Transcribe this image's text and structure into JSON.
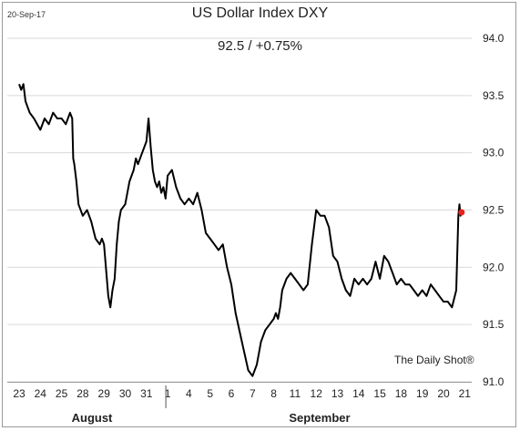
{
  "date_stamp": "20-Sep-17",
  "chart_data": {
    "type": "line",
    "title": "US Dollar Index DXY",
    "subtitle": "92.5  /  +0.75%",
    "watermark": "The Daily Shot®",
    "ylim": [
      91.0,
      94.0
    ],
    "y_ticks": [
      "94.0",
      "93.5",
      "93.0",
      "92.5",
      "92.0",
      "91.5",
      "91.0"
    ],
    "y_tick_values": [
      94.0,
      93.5,
      93.0,
      92.5,
      92.0,
      91.5,
      91.0
    ],
    "x_tick_labels": [
      "23",
      "24",
      "25",
      "28",
      "29",
      "30",
      "31",
      "1",
      "4",
      "5",
      "6",
      "7",
      "8",
      "11",
      "12",
      "13",
      "14",
      "15",
      "18",
      "19",
      "20",
      "21"
    ],
    "month_labels": [
      "August",
      "September"
    ],
    "grid": true,
    "last_point": {
      "x": 20.85,
      "y": 92.48
    },
    "series": [
      {
        "color": "#000000",
        "x": [
          0.0,
          0.1,
          0.2,
          0.3,
          0.5,
          0.7,
          1.0,
          1.2,
          1.4,
          1.6,
          1.8,
          2.0,
          2.2,
          2.4,
          2.5,
          2.55,
          2.6,
          2.7,
          2.8,
          3.0,
          3.2,
          3.4,
          3.6,
          3.8,
          3.9,
          4.0,
          4.2,
          4.3,
          4.4,
          4.5,
          4.6,
          4.7,
          4.8,
          5.0,
          5.2,
          5.4,
          5.5,
          5.6,
          5.8,
          5.9,
          6.0,
          6.1,
          6.2,
          6.3,
          6.4,
          6.5,
          6.6,
          6.7,
          6.8,
          6.9,
          7.0,
          7.2,
          7.4,
          7.6,
          7.8,
          8.0,
          8.2,
          8.4,
          8.6,
          8.8,
          9.0,
          9.2,
          9.4,
          9.6,
          9.8,
          10.0,
          10.2,
          10.5,
          10.8,
          11.0,
          11.2,
          11.4,
          11.6,
          11.8,
          12.0,
          12.1,
          12.2,
          12.3,
          12.4,
          12.6,
          12.8,
          13.0,
          13.2,
          13.4,
          13.6,
          13.8,
          14.0,
          14.2,
          14.4,
          14.6,
          14.8,
          15.0,
          15.2,
          15.4,
          15.6,
          15.8,
          16.0,
          16.2,
          16.4,
          16.6,
          16.8,
          17.0,
          17.2,
          17.4,
          17.6,
          17.8,
          18.0,
          18.2,
          18.4,
          18.6,
          18.8,
          19.0,
          19.2,
          19.4,
          19.6,
          19.8,
          20.0,
          20.2,
          20.4,
          20.6,
          20.7,
          20.75,
          20.8,
          20.85
        ],
        "values": [
          93.6,
          93.55,
          93.6,
          93.45,
          93.35,
          93.3,
          93.2,
          93.3,
          93.25,
          93.35,
          93.3,
          93.3,
          93.25,
          93.35,
          93.3,
          92.95,
          92.9,
          92.75,
          92.55,
          92.45,
          92.5,
          92.4,
          92.25,
          92.2,
          92.25,
          92.2,
          91.75,
          91.65,
          91.8,
          91.9,
          92.2,
          92.4,
          92.5,
          92.55,
          92.75,
          92.85,
          92.95,
          92.9,
          93.0,
          93.05,
          93.1,
          93.3,
          93.05,
          92.85,
          92.75,
          92.7,
          92.75,
          92.65,
          92.7,
          92.6,
          92.8,
          92.85,
          92.7,
          92.6,
          92.55,
          92.6,
          92.55,
          92.65,
          92.5,
          92.3,
          92.25,
          92.2,
          92.15,
          92.2,
          92.0,
          91.85,
          91.6,
          91.35,
          91.1,
          91.05,
          91.15,
          91.35,
          91.45,
          91.5,
          91.55,
          91.6,
          91.55,
          91.65,
          91.8,
          91.9,
          91.95,
          91.9,
          91.85,
          91.8,
          91.85,
          92.2,
          92.5,
          92.45,
          92.45,
          92.35,
          92.1,
          92.05,
          91.9,
          91.8,
          91.75,
          91.9,
          91.85,
          91.9,
          91.85,
          91.9,
          92.05,
          91.9,
          92.1,
          92.05,
          91.95,
          91.85,
          91.9,
          91.85,
          91.85,
          91.8,
          91.75,
          91.8,
          91.75,
          91.85,
          91.8,
          91.75,
          91.7,
          91.7,
          91.65,
          91.8,
          92.45,
          92.55,
          92.45,
          92.48
        ]
      }
    ]
  }
}
